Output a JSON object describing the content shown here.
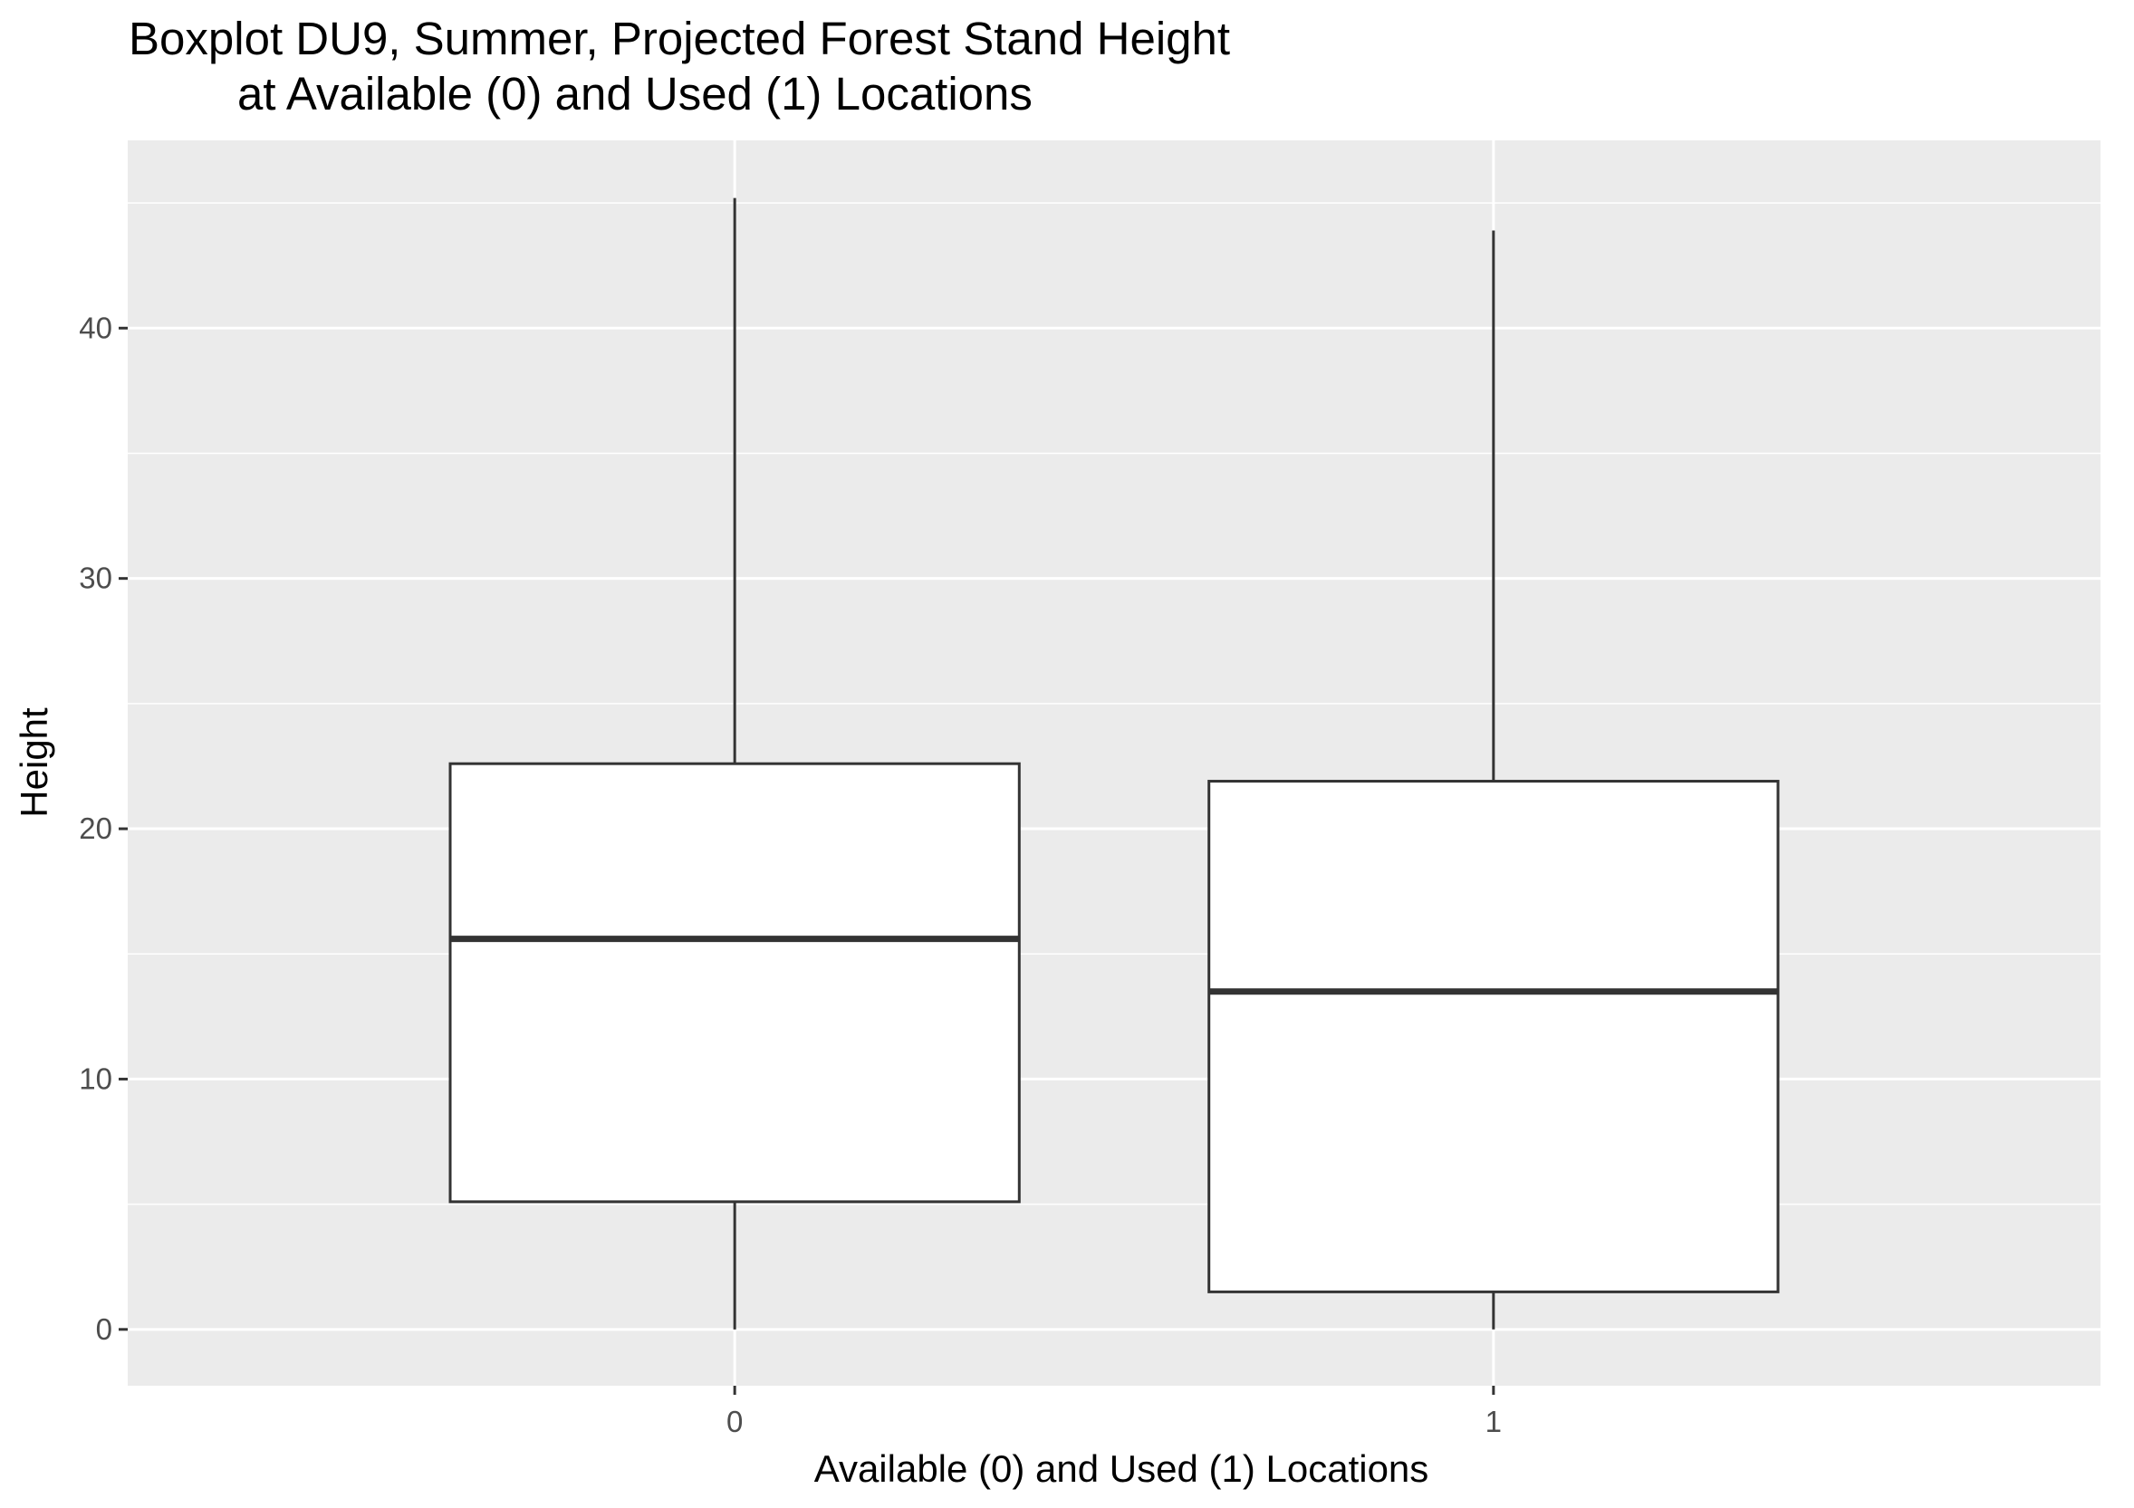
{
  "chart_data": {
    "type": "boxplot",
    "title_line1": "Boxplot DU9, Summer, Projected Forest Stand Height",
    "title_line2": "at Available (0) and Used (1) Locations",
    "xlabel": "Available (0) and Used (1) Locations",
    "ylabel": "Height",
    "categories": [
      "0",
      "1"
    ],
    "boxes": [
      {
        "category": "0",
        "min": 0,
        "q1": 5.1,
        "median": 15.6,
        "q3": 22.6,
        "max": 45.2
      },
      {
        "category": "1",
        "min": 0,
        "q1": 1.5,
        "median": 13.5,
        "q3": 21.9,
        "max": 43.9
      }
    ],
    "ylim": [
      -2.25,
      47.5
    ],
    "yticks": [
      0,
      10,
      20,
      30,
      40
    ],
    "ytick_labels": [
      "0",
      "10",
      "20",
      "30",
      "40"
    ],
    "grid": true,
    "colors": {
      "panel": "#ebebeb",
      "grid": "#ffffff",
      "box_fill": "#ffffff",
      "box_stroke": "#333333",
      "tick_text": "#4d4d4d"
    }
  }
}
